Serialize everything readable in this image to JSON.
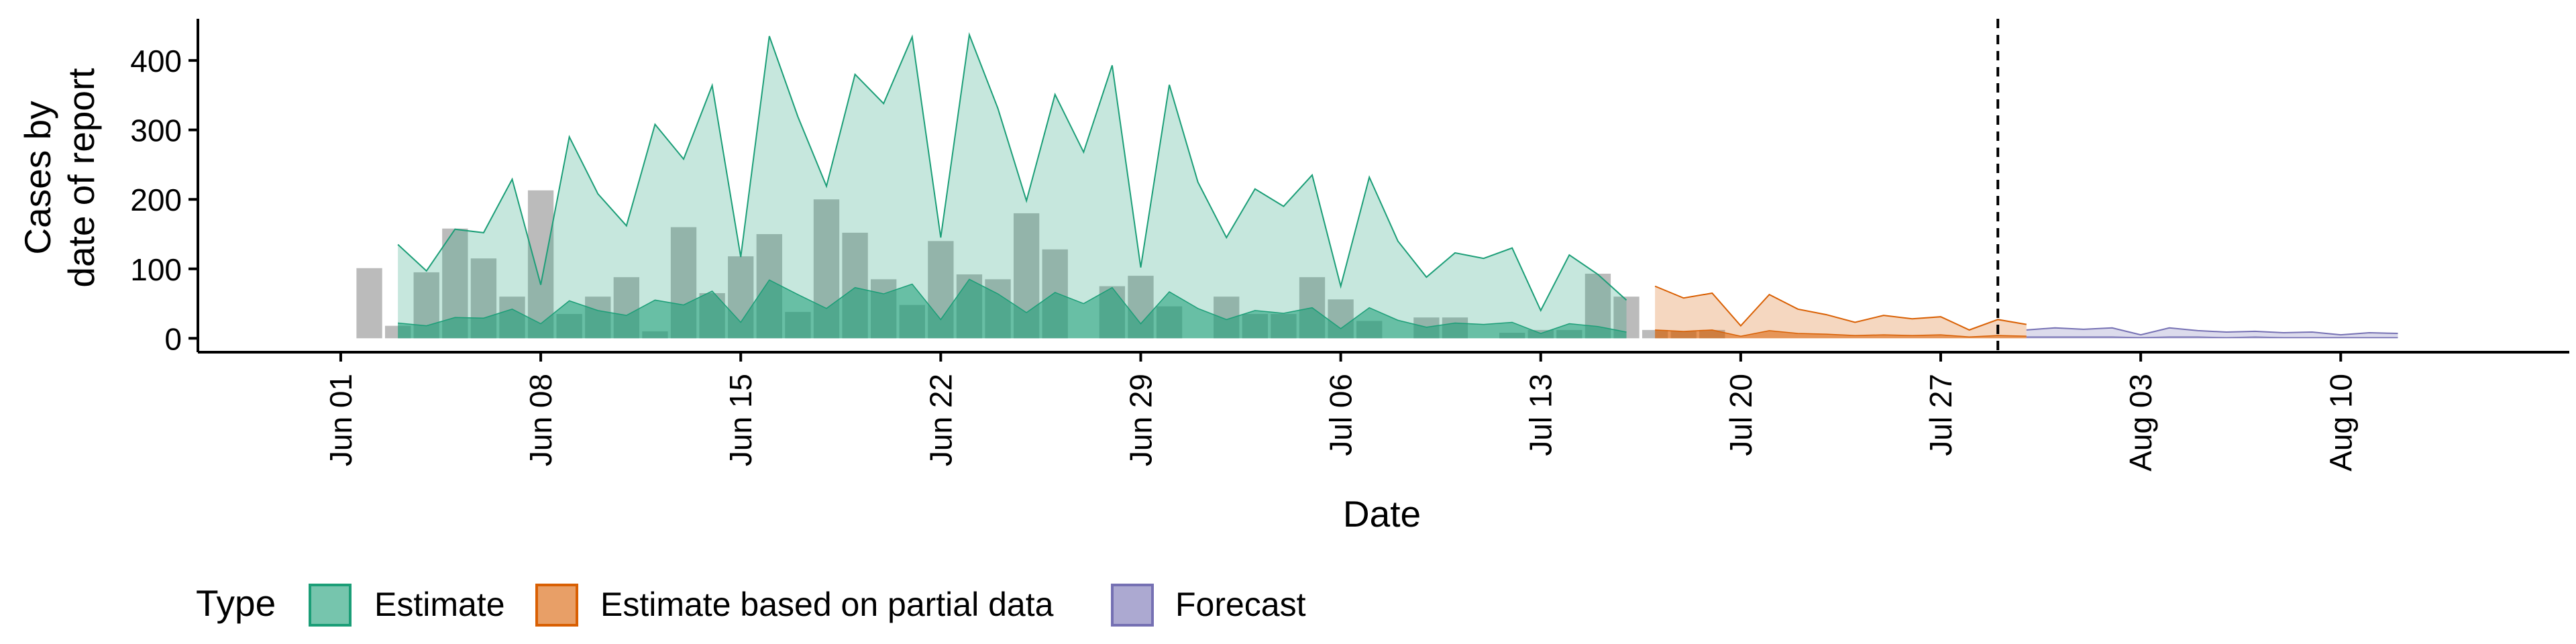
{
  "chart_data": {
    "type": "area",
    "xlabel": "Date",
    "ylabel_lines": [
      "Cases by",
      "date of report"
    ],
    "ylim": [
      -20,
      460
    ],
    "y_ticks": [
      0,
      100,
      200,
      300,
      400
    ],
    "x_range": [
      "2020-05-27",
      "2020-08-18"
    ],
    "x_ticks": [
      {
        "date": "2020-06-01",
        "label": "Jun 01"
      },
      {
        "date": "2020-06-08",
        "label": "Jun 08"
      },
      {
        "date": "2020-06-15",
        "label": "Jun 15"
      },
      {
        "date": "2020-06-22",
        "label": "Jun 22"
      },
      {
        "date": "2020-06-29",
        "label": "Jun 29"
      },
      {
        "date": "2020-07-06",
        "label": "Jul 06"
      },
      {
        "date": "2020-07-13",
        "label": "Jul 13"
      },
      {
        "date": "2020-07-20",
        "label": "Jul 20"
      },
      {
        "date": "2020-07-27",
        "label": "Jul 27"
      },
      {
        "date": "2020-08-03",
        "label": "Aug 03"
      },
      {
        "date": "2020-08-10",
        "label": "Aug 10"
      }
    ],
    "vline_date": "2020-07-29",
    "legend": {
      "title": "Type",
      "position": "bottom",
      "items": [
        {
          "label": "Estimate",
          "color": "#1b9e77"
        },
        {
          "label": "Estimate based on partial data",
          "color": "#d95f02"
        },
        {
          "label": "Forecast",
          "color": "#7570b3"
        }
      ]
    },
    "bars": {
      "color": "#9e9e9e",
      "start_date": "2020-06-02",
      "values": [
        101,
        18,
        95,
        158,
        115,
        60,
        213,
        35,
        60,
        88,
        10,
        160,
        65,
        118,
        150,
        38,
        200,
        152,
        85,
        48,
        140,
        92,
        85,
        180,
        128,
        0,
        75,
        90,
        46,
        0,
        60,
        35,
        35,
        88,
        56,
        25,
        0,
        30,
        30,
        0,
        8,
        12,
        12,
        93,
        60,
        12,
        10,
        12,
        0,
        0,
        0,
        0,
        0,
        0
      ]
    },
    "series": [
      {
        "name": "Estimate",
        "color": "#1b9e77",
        "start_date": "2020-06-03",
        "upper": [
          135,
          97,
          157,
          152,
          229,
          77,
          290,
          208,
          162,
          308,
          258,
          364,
          117,
          435,
          319,
          219,
          380,
          338,
          434,
          145,
          437,
          331,
          198,
          351,
          268,
          393,
          102,
          365,
          225,
          145,
          215,
          190,
          235,
          75,
          232,
          140,
          88,
          123,
          115,
          130,
          40,
          120,
          92,
          55
        ],
        "lower": [
          22,
          18,
          30,
          29,
          42,
          21,
          54,
          40,
          33,
          55,
          48,
          68,
          23,
          84,
          63,
          43,
          73,
          64,
          78,
          27,
          85,
          64,
          37,
          66,
          50,
          73,
          21,
          67,
          43,
          27,
          40,
          36,
          44,
          14,
          44,
          26,
          16,
          22,
          20,
          23,
          7,
          21,
          17,
          9
        ]
      },
      {
        "name": "Estimate based on partial data",
        "color": "#d95f02",
        "start_date": "2020-07-17",
        "upper": [
          75,
          58,
          65,
          18,
          63,
          42,
          34,
          23,
          33,
          28,
          31,
          12,
          27,
          20
        ],
        "lower": [
          12,
          10,
          12,
          3,
          11,
          7,
          6,
          4,
          5,
          4,
          5,
          2,
          4,
          3
        ]
      },
      {
        "name": "Forecast",
        "color": "#7570b3",
        "start_date": "2020-07-30",
        "upper": [
          12,
          15,
          13,
          15,
          5,
          15,
          11,
          9,
          10,
          8,
          9,
          5,
          8,
          7
        ],
        "lower": [
          2,
          2,
          2,
          2,
          1,
          2,
          2,
          1,
          2,
          1,
          1,
          1,
          1,
          1
        ]
      }
    ]
  }
}
